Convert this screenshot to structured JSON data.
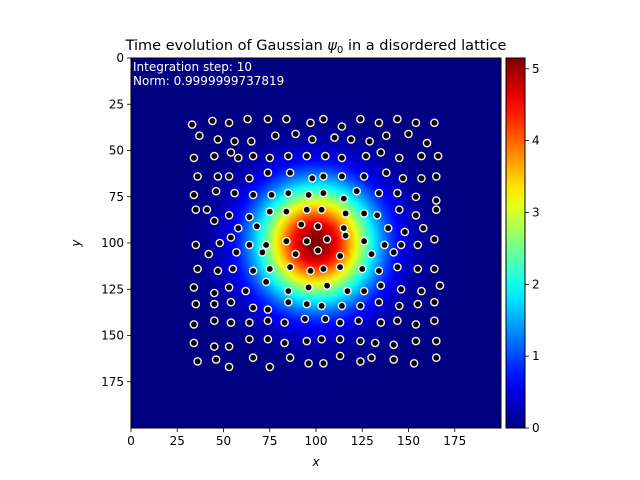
{
  "chart_data": {
    "type": "heatmap",
    "title": "Time evolution of Gaussian ψ0 in a disordered lattice",
    "title_prefix": "Time evolution of Gaussian ",
    "title_symbol": "ψ",
    "title_subscript": "0",
    "title_suffix": " in a disordered lattice",
    "xlabel": "x",
    "ylabel": "y",
    "xlim": [
      0,
      200
    ],
    "ylim": [
      200,
      0
    ],
    "x_ticks": [
      0,
      25,
      50,
      75,
      100,
      125,
      150,
      175
    ],
    "y_ticks": [
      0,
      25,
      50,
      75,
      100,
      125,
      150,
      175
    ],
    "annotations": [
      {
        "text": "Integration step: 10"
      },
      {
        "text": "Norm: 0.9999999737819"
      }
    ],
    "field": {
      "description": "Gaussian |psi|^2 density",
      "center": [
        100,
        100
      ],
      "sigma": 22,
      "peak": 5.15
    },
    "colorbar": {
      "colormap": "jet",
      "range": [
        0,
        5.15
      ],
      "ticks": [
        0,
        1,
        2,
        3,
        4,
        5
      ]
    },
    "lattice_points": [
      [
        33,
        36
      ],
      [
        44,
        34
      ],
      [
        53,
        35
      ],
      [
        63,
        33
      ],
      [
        74,
        33
      ],
      [
        84,
        33
      ],
      [
        97,
        35
      ],
      [
        104,
        33
      ],
      [
        114,
        37
      ],
      [
        124,
        33
      ],
      [
        134,
        35
      ],
      [
        144,
        33
      ],
      [
        154,
        35
      ],
      [
        164,
        35
      ],
      [
        37,
        42
      ],
      [
        47,
        44
      ],
      [
        56,
        45
      ],
      [
        65,
        45
      ],
      [
        78,
        42
      ],
      [
        89,
        41
      ],
      [
        98,
        44
      ],
      [
        110,
        43
      ],
      [
        119,
        44
      ],
      [
        129,
        45
      ],
      [
        138,
        42
      ],
      [
        150,
        41
      ],
      [
        160,
        46
      ],
      [
        34,
        54
      ],
      [
        45,
        53
      ],
      [
        54,
        51
      ],
      [
        58,
        54
      ],
      [
        66,
        53
      ],
      [
        75,
        54
      ],
      [
        85,
        53
      ],
      [
        95,
        53
      ],
      [
        105,
        53
      ],
      [
        114,
        54
      ],
      [
        127,
        53
      ],
      [
        135,
        51
      ],
      [
        145,
        54
      ],
      [
        157,
        53
      ],
      [
        166,
        53
      ],
      [
        36,
        64
      ],
      [
        47,
        64
      ],
      [
        53,
        64
      ],
      [
        64,
        65
      ],
      [
        74,
        62
      ],
      [
        86,
        62
      ],
      [
        98,
        65
      ],
      [
        104,
        64
      ],
      [
        114,
        64
      ],
      [
        126,
        64
      ],
      [
        138,
        62
      ],
      [
        147,
        65
      ],
      [
        157,
        65
      ],
      [
        165,
        64
      ],
      [
        34,
        74
      ],
      [
        46,
        72
      ],
      [
        56,
        73
      ],
      [
        66,
        74
      ],
      [
        76,
        74
      ],
      [
        85,
        73
      ],
      [
        96,
        74
      ],
      [
        104,
        73
      ],
      [
        115,
        76
      ],
      [
        122,
        72
      ],
      [
        134,
        73
      ],
      [
        144,
        73
      ],
      [
        154,
        75
      ],
      [
        165,
        77
      ],
      [
        35,
        82
      ],
      [
        41,
        82
      ],
      [
        53,
        85
      ],
      [
        64,
        86
      ],
      [
        75,
        83
      ],
      [
        84,
        83
      ],
      [
        95,
        82
      ],
      [
        103,
        82
      ],
      [
        116,
        84
      ],
      [
        126,
        84
      ],
      [
        133,
        85
      ],
      [
        145,
        82
      ],
      [
        154,
        85
      ],
      [
        165,
        82
      ],
      [
        45,
        88
      ],
      [
        58,
        92
      ],
      [
        68,
        91
      ],
      [
        92,
        90
      ],
      [
        101,
        91
      ],
      [
        115,
        92
      ],
      [
        139,
        92
      ],
      [
        148,
        94
      ],
      [
        158,
        92
      ],
      [
        35,
        101
      ],
      [
        48,
        100
      ],
      [
        54,
        97
      ],
      [
        64,
        101
      ],
      [
        73,
        101
      ],
      [
        84,
        99
      ],
      [
        95,
        99
      ],
      [
        106,
        98
      ],
      [
        116,
        96
      ],
      [
        126,
        99
      ],
      [
        137,
        101
      ],
      [
        146,
        101
      ],
      [
        155,
        101
      ],
      [
        164,
        98
      ],
      [
        42,
        106
      ],
      [
        57,
        105
      ],
      [
        71,
        105
      ],
      [
        89,
        106
      ],
      [
        101,
        104
      ],
      [
        113,
        107
      ],
      [
        130,
        106
      ],
      [
        142,
        105
      ],
      [
        36,
        114
      ],
      [
        47,
        115
      ],
      [
        55,
        114
      ],
      [
        66,
        115
      ],
      [
        75,
        114
      ],
      [
        86,
        113
      ],
      [
        97,
        115
      ],
      [
        104,
        114
      ],
      [
        113,
        113
      ],
      [
        125,
        114
      ],
      [
        134,
        115
      ],
      [
        144,
        113
      ],
      [
        155,
        114
      ],
      [
        164,
        114
      ],
      [
        34,
        124
      ],
      [
        45,
        127
      ],
      [
        53,
        124
      ],
      [
        62,
        126
      ],
      [
        73,
        121
      ],
      [
        85,
        126
      ],
      [
        96,
        124
      ],
      [
        106,
        123
      ],
      [
        117,
        126
      ],
      [
        126,
        126
      ],
      [
        135,
        123
      ],
      [
        146,
        125
      ],
      [
        157,
        126
      ],
      [
        167,
        123
      ],
      [
        35,
        133
      ],
      [
        45,
        133
      ],
      [
        54,
        132
      ],
      [
        66,
        135
      ],
      [
        74,
        136
      ],
      [
        85,
        132
      ],
      [
        95,
        133
      ],
      [
        103,
        134
      ],
      [
        114,
        134
      ],
      [
        124,
        134
      ],
      [
        134,
        132
      ],
      [
        145,
        134
      ],
      [
        155,
        133
      ],
      [
        164,
        132
      ],
      [
        34,
        144
      ],
      [
        45,
        142
      ],
      [
        54,
        143
      ],
      [
        64,
        143
      ],
      [
        74,
        142
      ],
      [
        83,
        143
      ],
      [
        94,
        141
      ],
      [
        105,
        141
      ],
      [
        113,
        143
      ],
      [
        123,
        142
      ],
      [
        135,
        143
      ],
      [
        144,
        142
      ],
      [
        154,
        144
      ],
      [
        164,
        142
      ],
      [
        34,
        154
      ],
      [
        45,
        156
      ],
      [
        53,
        156
      ],
      [
        64,
        152
      ],
      [
        74,
        152
      ],
      [
        83,
        154
      ],
      [
        95,
        153
      ],
      [
        103,
        152
      ],
      [
        113,
        152
      ],
      [
        124,
        153
      ],
      [
        132,
        154
      ],
      [
        142,
        155
      ],
      [
        154,
        153
      ],
      [
        165,
        153
      ],
      [
        36,
        164
      ],
      [
        46,
        163
      ],
      [
        53,
        167
      ],
      [
        66,
        162
      ],
      [
        75,
        167
      ],
      [
        86,
        162
      ],
      [
        96,
        165
      ],
      [
        104,
        165
      ],
      [
        113,
        161
      ],
      [
        124,
        164
      ],
      [
        130,
        162
      ],
      [
        142,
        163
      ],
      [
        153,
        165
      ],
      [
        165,
        162
      ]
    ]
  }
}
